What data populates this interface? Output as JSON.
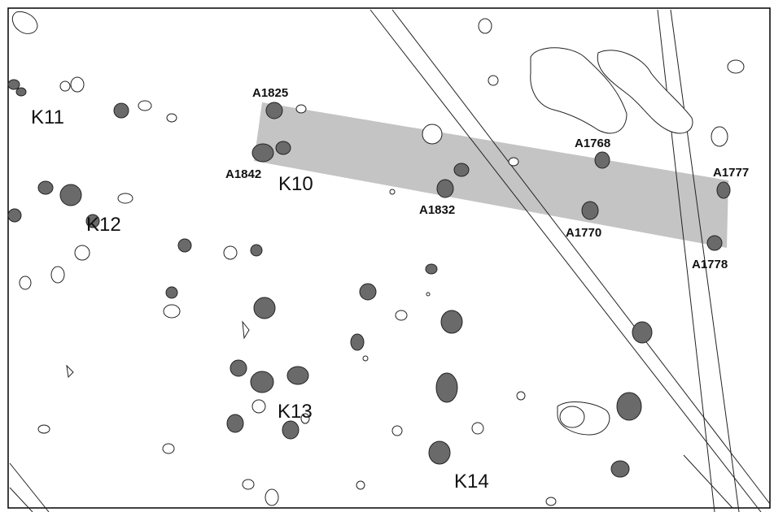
{
  "zones": {
    "k10": "K10",
    "k11": "K11",
    "k12": "K12",
    "k13": "K13",
    "k14": "K14"
  },
  "features": {
    "a1825": "A1825",
    "a1842": "A1842",
    "a1832": "A1832",
    "a1768": "A1768",
    "a1770": "A1770",
    "a1777": "A1777",
    "a1778": "A1778"
  },
  "colors": {
    "selection_fill": "#c4c4c4",
    "filled_feature": "#6a6a6a",
    "outline": "#222222",
    "frame": "#000000"
  }
}
